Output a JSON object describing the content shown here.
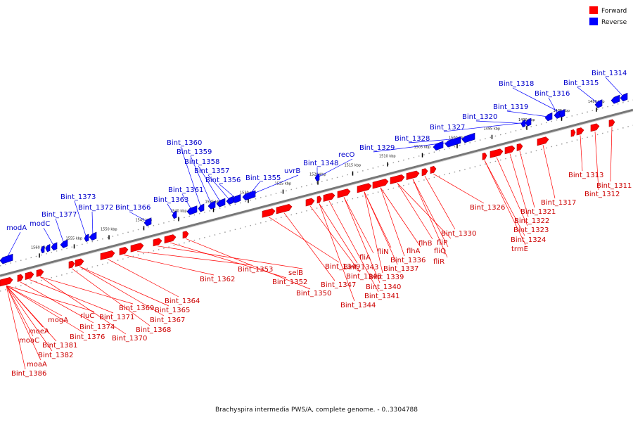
{
  "legend": {
    "forward": {
      "label": "Forward",
      "color": "#ff0000"
    },
    "reverse": {
      "label": "Reverse",
      "color": "#0000ff"
    }
  },
  "footer": "Brachyspira intermedia PWS/A, complete genome. - 0..3304788",
  "colors": {
    "axis": "#777777",
    "tick": "#000000",
    "dots": "#999999"
  },
  "kbp_ticks": [
    "1480 kbp",
    "1485 kbp",
    "1490 kbp",
    "1495 kbp",
    "1500 kbp",
    "1505 kbp",
    "1510 kbp",
    "1515 kbp",
    "1520 kbp",
    "1525 kbp",
    "1530 kbp",
    "1535 kbp",
    "1540 kbp",
    "1545 kbp",
    "1550 kbp",
    "1555 kbp",
    "1560 kbp"
  ],
  "reverse_labels": [
    "Bint_1314",
    "Bint_1315",
    "Bint_1316",
    "Bint_1318",
    "Bint_1319",
    "Bint_1320",
    "Bint_1327",
    "Bint_1328",
    "Bint_1329",
    "recO",
    "Bint_1348",
    "uvrB",
    "Bint_1355",
    "Bint_1356",
    "Bint_1357",
    "Bint_1358",
    "Bint_1359",
    "Bint_1360",
    "Bint_1361",
    "Bint_1363",
    "Bint_1366",
    "Bint_1372",
    "Bint_1373",
    "Bint_1377",
    "modC",
    "modA"
  ],
  "forward_labels": [
    "Bint_1311",
    "Bint_1312",
    "Bint_1313",
    "Bint_1317",
    "Bint_1321",
    "Bint_1322",
    "Bint_1323",
    "Bint_1324",
    "trmE",
    "Bint_1326",
    "Bint_1330",
    "fliQ",
    "fliP",
    "fliR",
    "flhB",
    "flhA",
    "Bint_1336",
    "fliN",
    "Bint_1337",
    "Bint_1339",
    "fliA",
    "Bint_1340",
    "Bint_1341",
    "Bint_1343",
    "Bint_1344",
    "Bint_1345",
    "Bint_1347",
    "Bint_1349",
    "Bint_1350",
    "Bint_1352",
    "selB",
    "Bint_1353",
    "Bint_1362",
    "Bint_1364",
    "Bint_1365",
    "Bint_1367",
    "Bint_1368",
    "Bint_1369",
    "Bint_1370",
    "Bint_1371",
    "Bint_1374",
    "rluC",
    "Bint_1376",
    "mogA",
    "Bint_1381",
    "Bint_1382",
    "moeA",
    "moaC",
    "moaA",
    "Bint_1386"
  ]
}
